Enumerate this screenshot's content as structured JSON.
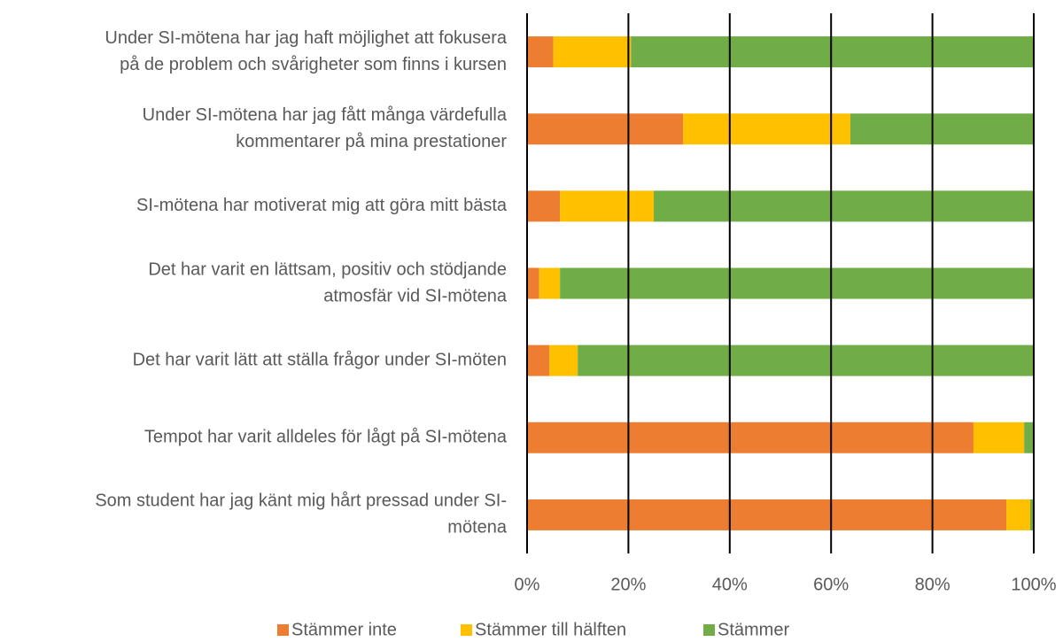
{
  "chart_data": {
    "type": "stacked_barh",
    "categories": [
      [
        "Under SI-mötena har jag haft möjlighet att fokusera",
        "på de problem och svårigheter som finns i kursen"
      ],
      [
        "Under SI-mötena har jag fått många värdefulla",
        "kommentarer på mina prestationer"
      ],
      [
        "SI-mötena har motiverat mig att göra mitt bästa"
      ],
      [
        "Det har varit en lättsam, positiv och stödjande",
        "atmosfär vid SI-mötena"
      ],
      [
        "Det har varit lätt att ställa frågor under SI-möten"
      ],
      [
        "Tempot har varit alldeles för lågt på SI-mötena"
      ],
      [
        "Som student har jag känt mig hårt pressad under SI-",
        "mötena"
      ]
    ],
    "series": [
      {
        "name": "Stämmer inte",
        "color": "#ed7d31",
        "values": [
          5.2,
          30.8,
          6.5,
          2.4,
          4.4,
          88.1,
          94.6
        ]
      },
      {
        "name": "Stämmer till hälften",
        "color": "#ffc000",
        "values": [
          15.3,
          33.0,
          18.5,
          4.1,
          5.6,
          10.0,
          4.7
        ]
      },
      {
        "name": "Stämmer",
        "color": "#70ad47",
        "values": [
          79.5,
          36.2,
          75.0,
          93.5,
          90.0,
          1.9,
          0.7
        ]
      }
    ],
    "xlim": [
      0,
      100
    ],
    "xticks": [
      {
        "value": 0,
        "label": "0%"
      },
      {
        "value": 20,
        "label": "20%"
      },
      {
        "value": 40,
        "label": "40%"
      },
      {
        "value": 60,
        "label": "60%"
      },
      {
        "value": 80,
        "label": "80%"
      },
      {
        "value": 100,
        "label": "100%"
      }
    ],
    "grid": true,
    "legend": "bottom"
  }
}
